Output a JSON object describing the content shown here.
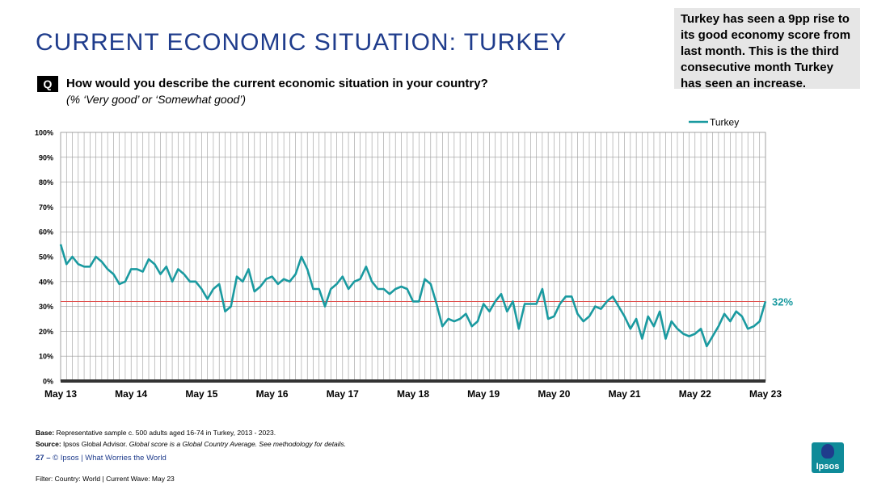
{
  "header": {
    "title": "CURRENT ECONOMIC SITUATION: TURKEY",
    "callout": "Turkey has seen a 9pp rise to its good economy score from last month. This is the third consecutive month Turkey has seen an increase.",
    "q_badge": "Q",
    "question": "How would you describe the current economic situation in your country?",
    "subquestion": "(% ‘Very good’ or ‘Somewhat good’)"
  },
  "footer": {
    "base_label": "Base:",
    "base_text": "Representative sample c. 500 adults aged 16-74 in Turkey, 2013 - 2023.",
    "source_label": "Source:",
    "source_text": "Ipsos Global Advisor.",
    "source_italic": "Global score is a Global Country Average. See methodology for details.",
    "page_number": "27",
    "page_sep": "–",
    "page_text": "© Ipsos | What Worries the World",
    "filter": "Filter: Country: World | Current Wave: May 23",
    "logo_text": "Ipsos"
  },
  "colors": {
    "series": "#1a9aa0",
    "reference": "#e0504d",
    "title": "#1f3c8c",
    "grid": "#9a9a9a"
  },
  "chart_data": {
    "type": "line",
    "title": "",
    "xlabel": "",
    "ylabel": "",
    "ylim": [
      0,
      100
    ],
    "y_ticks": [
      "0%",
      "10%",
      "20%",
      "30%",
      "40%",
      "50%",
      "60%",
      "70%",
      "80%",
      "90%",
      "100%"
    ],
    "x_ticks": [
      "May 13",
      "May 14",
      "May 15",
      "May 16",
      "May 17",
      "May 18",
      "May 19",
      "May 20",
      "May 21",
      "May 22",
      "May 23"
    ],
    "grid": true,
    "legend_position": "top-right",
    "reference_line": 32,
    "end_label": "32%",
    "series": [
      {
        "name": "Turkey",
        "values": [
          55,
          47,
          50,
          47,
          46,
          46,
          50,
          48,
          45,
          43,
          39,
          40,
          45,
          45,
          44,
          49,
          47,
          43,
          46,
          40,
          45,
          43,
          40,
          40,
          37,
          33,
          37,
          39,
          28,
          30,
          42,
          40,
          45,
          36,
          38,
          41,
          42,
          39,
          41,
          40,
          43,
          50,
          45,
          37,
          37,
          30,
          37,
          39,
          42,
          37,
          40,
          41,
          46,
          40,
          37,
          37,
          35,
          37,
          38,
          37,
          32,
          32,
          41,
          39,
          31,
          22,
          25,
          24,
          25,
          27,
          22,
          24,
          31,
          28,
          32,
          35,
          28,
          32,
          21,
          31,
          31,
          31,
          37,
          25,
          26,
          31,
          34,
          34,
          27,
          24,
          26,
          30,
          29,
          32,
          34,
          30,
          26,
          21,
          25,
          17,
          26,
          22,
          28,
          17,
          24,
          21,
          19,
          18,
          19,
          21,
          14,
          18,
          22,
          27,
          24,
          28,
          26,
          21,
          22,
          24,
          32
        ]
      }
    ]
  }
}
